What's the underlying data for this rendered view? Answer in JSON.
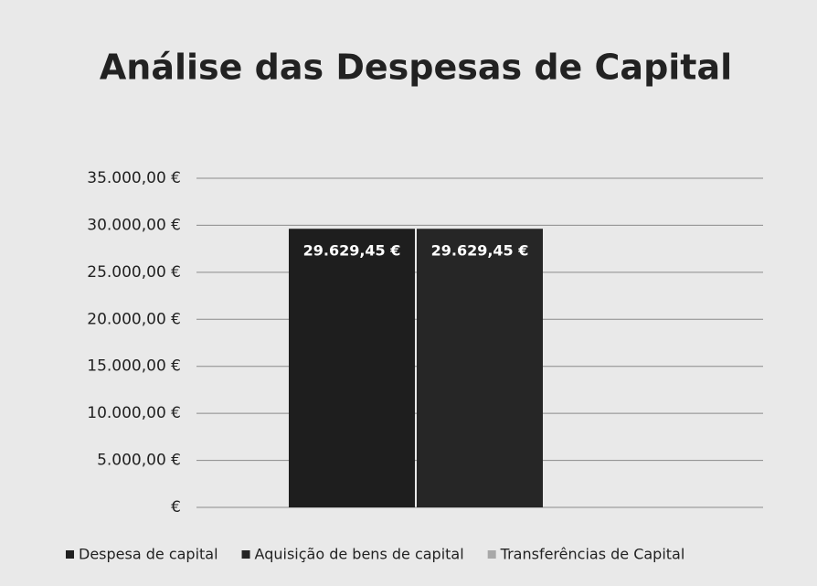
{
  "chart_data": {
    "type": "bar",
    "title": "Análise das Despesas de Capital",
    "categories": [
      null
    ],
    "series": [
      {
        "name": "Despesa de capital",
        "color": "#1e1e1e",
        "values": [
          29629.45
        ],
        "value_labels": [
          "29.629,45 €"
        ]
      },
      {
        "name": "Aquisição de bens de capital",
        "color": "#262626",
        "values": [
          29629.45
        ],
        "value_labels": [
          "29.629,45 €"
        ]
      },
      {
        "name": "Transferências de Capital",
        "color": "#a8a8a8",
        "values": [
          0
        ]
      }
    ],
    "ylim": [
      0,
      35000
    ],
    "yticks": [
      {
        "value": 0,
        "label": "€"
      },
      {
        "value": 5000,
        "label": "5.000,00 €"
      },
      {
        "value": 10000,
        "label": "10.000,00 €"
      },
      {
        "value": 15000,
        "label": "15.000,00 €"
      },
      {
        "value": 20000,
        "label": "20.000,00 €"
      },
      {
        "value": 25000,
        "label": "25.000,00 €"
      },
      {
        "value": 30000,
        "label": "30.000,00 €"
      },
      {
        "value": 35000,
        "label": "35.000,00 €"
      }
    ],
    "grid": true,
    "legend": "bottom"
  }
}
